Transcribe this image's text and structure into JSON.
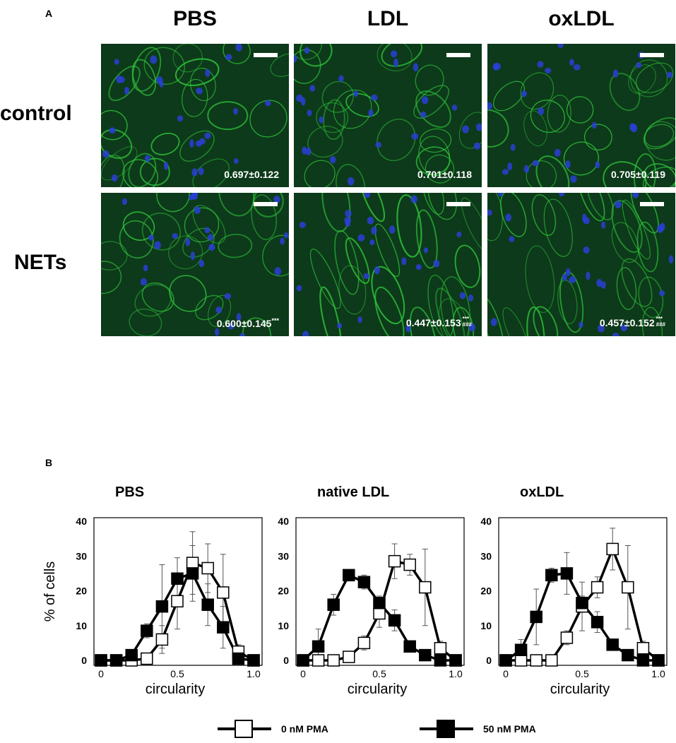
{
  "panel_a": {
    "letter": "A",
    "columns": [
      "PBS",
      "LDL",
      "oxLDL"
    ],
    "rows": [
      "control",
      "NETs"
    ],
    "images": [
      {
        "row": "control",
        "col": "PBS",
        "value": "0.697±0.122",
        "sig1": "",
        "sig2": ""
      },
      {
        "row": "control",
        "col": "LDL",
        "value": "0.701±0.118",
        "sig1": "",
        "sig2": ""
      },
      {
        "row": "control",
        "col": "oxLDL",
        "value": "0.705±0.119",
        "sig1": "",
        "sig2": ""
      },
      {
        "row": "NETs",
        "col": "PBS",
        "value": "0.600±0.145",
        "sig1": "***",
        "sig2": ""
      },
      {
        "row": "NETs",
        "col": "LDL",
        "value": "0.447±0.153",
        "sig1": "***",
        "sig2": "###"
      },
      {
        "row": "NETs",
        "col": "oxLDL",
        "value": "0.457±0.152",
        "sig1": "***",
        "sig2": "###"
      }
    ],
    "colors": {
      "membrane": "#2fc43c",
      "nuclei": "#2a3fd6",
      "background": "#0d3a1a"
    }
  },
  "panel_b": {
    "letter": "B",
    "ylabel": "% of cells",
    "legend": [
      {
        "label": "0 nM PMA",
        "marker": "open-square"
      },
      {
        "label": "50 nM PMA",
        "marker": "filled-square"
      }
    ]
  },
  "chart_data": [
    {
      "type": "line",
      "title": "PBS",
      "xlabel": "circularity",
      "ylabel": "% of cells",
      "xlim": [
        0,
        1.0
      ],
      "ylim": [
        0,
        40
      ],
      "xticks": [
        0,
        0.5,
        1.0
      ],
      "xtick_labels": [
        "0",
        "0.5",
        "1.0"
      ],
      "yticks": [
        0,
        10,
        20,
        30,
        40
      ],
      "ytick_labels": [
        "0",
        "10",
        "20",
        "30",
        "40"
      ],
      "series": [
        {
          "name": "0 nM PMA",
          "x": [
            0,
            0.1,
            0.2,
            0.3,
            0.4,
            0.5,
            0.6,
            0.7,
            0.8,
            0.9,
            1.0
          ],
          "y": [
            0,
            0,
            0,
            0.5,
            6,
            17,
            28,
            26.5,
            19.5,
            2.5,
            0
          ],
          "err": [
            0,
            0,
            0,
            0.5,
            4,
            8,
            9,
            7,
            11,
            2,
            0
          ]
        },
        {
          "name": "50 nM PMA",
          "x": [
            0,
            0.1,
            0.2,
            0.3,
            0.4,
            0.5,
            0.6,
            0.7,
            0.8,
            0.9,
            1.0
          ],
          "y": [
            0,
            0,
            1.5,
            8.5,
            15.5,
            23.5,
            25,
            16,
            9.5,
            0.5,
            0
          ],
          "err": [
            0,
            0,
            1,
            2,
            12,
            6,
            8,
            6,
            6,
            1,
            0
          ]
        }
      ]
    },
    {
      "type": "line",
      "title": "native LDL",
      "xlabel": "circularity",
      "ylabel": "",
      "xlim": [
        0,
        1.0
      ],
      "ylim": [
        0,
        40
      ],
      "xticks": [
        0,
        0.5,
        1.0
      ],
      "xtick_labels": [
        "0",
        "0.5",
        "1.0"
      ],
      "yticks": [
        0,
        10,
        20,
        30,
        40
      ],
      "ytick_labels": [
        "0",
        "10",
        "20",
        "30",
        "40"
      ],
      "series": [
        {
          "name": "0 nM PMA",
          "x": [
            0,
            0.1,
            0.2,
            0.3,
            0.4,
            0.5,
            0.6,
            0.7,
            0.8,
            0.9,
            1.0
          ],
          "y": [
            0,
            0,
            0,
            1,
            5,
            13.5,
            28.5,
            27.5,
            21,
            3.5,
            0
          ],
          "err": [
            0,
            0,
            0,
            0.5,
            2,
            4,
            5,
            3,
            11,
            2,
            0
          ]
        },
        {
          "name": "50 nM PMA",
          "x": [
            0,
            0.1,
            0.2,
            0.3,
            0.4,
            0.5,
            0.6,
            0.7,
            0.8,
            0.9,
            1.0
          ],
          "y": [
            0,
            4,
            16,
            24.5,
            22.5,
            16.5,
            11.5,
            4,
            1.5,
            0,
            0
          ],
          "err": [
            0,
            5,
            3,
            1,
            2,
            2,
            3,
            1,
            1,
            0,
            0
          ]
        }
      ]
    },
    {
      "type": "line",
      "title": "oxLDL",
      "xlabel": "circularity",
      "ylabel": "",
      "xlim": [
        0,
        1.0
      ],
      "ylim": [
        0,
        40
      ],
      "xticks": [
        0,
        0.5,
        1.0
      ],
      "xtick_labels": [
        "0",
        "0.5",
        "1.0"
      ],
      "yticks": [
        0,
        10,
        20,
        30,
        40
      ],
      "ytick_labels": [
        "0",
        "10",
        "20",
        "30",
        "40"
      ],
      "series": [
        {
          "name": "0 nM PMA",
          "x": [
            0,
            0.1,
            0.2,
            0.3,
            0.4,
            0.5,
            0.6,
            0.7,
            0.8,
            0.9,
            1.0
          ],
          "y": [
            0,
            0,
            0,
            0,
            6.5,
            15.5,
            21,
            32,
            21,
            3.5,
            0
          ],
          "err": [
            0,
            0,
            0,
            0,
            2,
            7,
            3,
            6,
            12,
            2,
            0
          ]
        },
        {
          "name": "50 nM PMA",
          "x": [
            0,
            0.1,
            0.2,
            0.3,
            0.4,
            0.5,
            0.6,
            0.7,
            0.8,
            0.9,
            1.0
          ],
          "y": [
            0,
            3,
            12.5,
            24.5,
            25,
            16.5,
            11,
            4.5,
            1.5,
            0,
            0
          ],
          "err": [
            0,
            3,
            8,
            2,
            6,
            2,
            3,
            1,
            1,
            0,
            0
          ]
        }
      ]
    }
  ]
}
